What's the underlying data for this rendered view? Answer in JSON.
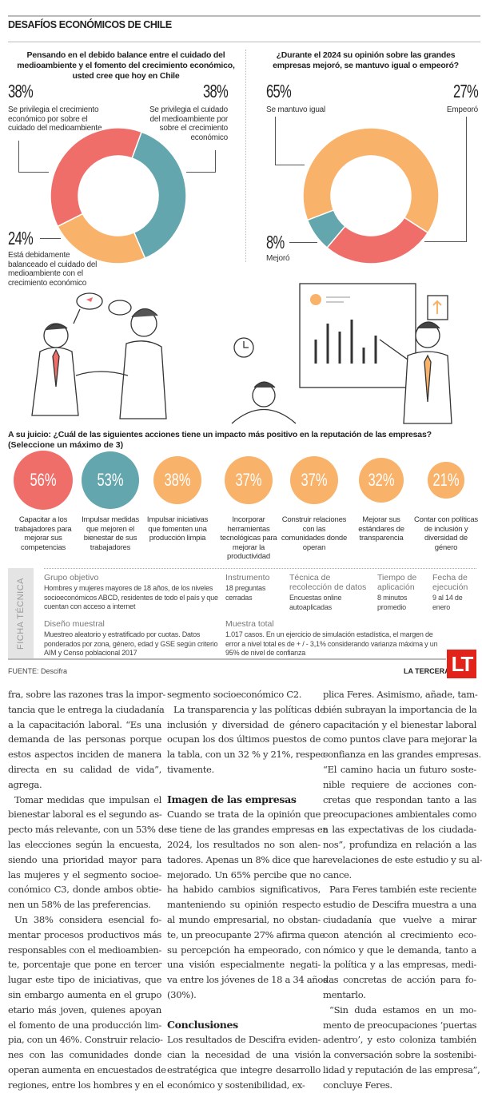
{
  "header": {
    "title": "DESAFÍOS ECONÓMICOS DE CHILE"
  },
  "colors": {
    "red": "#ef6e6a",
    "teal": "#64a6ad",
    "orange": "#f8b26a"
  },
  "chart_data": [
    {
      "type": "pie",
      "donut": true,
      "title": "Pensando en el debido balance entre el cuidado del medioambiente y el fomento del crecimiento económico, usted cree que hoy en Chile",
      "slices": [
        {
          "label": "Se privilegia el cuidado del medioambiente por sobre el crecimiento económico",
          "value": 38,
          "display": "38%",
          "color": "#64a6ad"
        },
        {
          "label": "Está debidamente balanceado el cuidado del medioambiente con el crecimiento económico",
          "value": 24,
          "display": "24%",
          "color": "#f8b26a"
        },
        {
          "label": "Se privilegia el crecimiento económico por sobre el cuidado del medioambiente",
          "value": 38,
          "display": "38%",
          "color": "#ef6e6a"
        }
      ]
    },
    {
      "type": "pie",
      "donut": true,
      "title": "¿Durante el 2024 su opinión sobre las grandes empresas mejoró, se mantuvo igual o empeoró?",
      "slices": [
        {
          "label": "Empeoró",
          "value": 27,
          "display": "27%",
          "color": "#ef6e6a"
        },
        {
          "label": "Mejoró",
          "value": 8,
          "display": "8%",
          "color": "#64a6ad"
        },
        {
          "label": "Se mantuvo igual",
          "value": 65,
          "display": "65%",
          "color": "#f8b26a"
        }
      ]
    },
    {
      "type": "bubble",
      "title": "A su juicio: ¿Cuál de las siguientes acciones tiene un impacto más positivo en la reputación de las empresas?",
      "subtitle": "(Seleccione un máximo de 3)",
      "items": [
        {
          "label": "Capacitar a los trabajadores para mejorar sus competencias",
          "value": 56,
          "display": "56%",
          "color": "#ef6e6a"
        },
        {
          "label": "Impulsar medidas que mejoren el bienestar de sus trabajadores",
          "value": 53,
          "display": "53%",
          "color": "#64a6ad"
        },
        {
          "label": "Impulsar iniciativas que fomenten una producción limpia",
          "value": 38,
          "display": "38%",
          "color": "#f8b26a"
        },
        {
          "label": "Incorporar herramientas tecnológicas para mejorar la productividad",
          "value": 37,
          "display": "37%",
          "color": "#f8b26a"
        },
        {
          "label": "Construir relaciones con las comunidades donde operan",
          "value": 37,
          "display": "37%",
          "color": "#f8b26a"
        },
        {
          "label": "Mejorar sus estándares de transparencia",
          "value": 32,
          "display": "32%",
          "color": "#f8b26a"
        },
        {
          "label": "Contar con políticas de inclusión y diversidad de género",
          "value": 21,
          "display": "21%",
          "color": "#f8b26a"
        }
      ]
    }
  ],
  "ficha": {
    "title": "FICHA TÉCNICA",
    "grupo": {
      "h": "Grupo objetivo",
      "t": "Hombres y mujeres mayores de 18 años, de los niveles socioeconómicos ABCD, residentes de todo el país y que cuentan con acceso a internet"
    },
    "instrumento": {
      "h": "Instrumento",
      "t": "18 preguntas cerradas"
    },
    "tecnica": {
      "h": "Técnica de recolección de datos",
      "t": "Encuestas online autoaplicadas"
    },
    "tiempo": {
      "h": "Tiempo de aplicación",
      "t": "8 minutos promedio"
    },
    "fecha": {
      "h": "Fecha de ejecución",
      "t": "9 al 14 de enero"
    },
    "diseno": {
      "h": "Diseño muestral",
      "t": "Muestreo aleatorio y estratificado por cuotas. Datos ponderados por zona, género, edad y GSE según criterio AIM y Censo poblacional 2017"
    },
    "muestra": {
      "h": "Muestra total",
      "t": "1.017 casos. En un ejercicio de simulación estadística, el margen de error a nivel total es de + / - 3,1% considerando varianza máxima y un 95% de nivel de confianza"
    }
  },
  "footer": {
    "source": "FUENTE: Descifra",
    "brand": "LA TERCERA",
    "logo": "LT"
  },
  "article": {
    "col1": [
      "fra, sobre las razones tras la impor-",
      "tancia que le entrega la ciudadanía",
      "a la capacitación laboral. “Es una",
      "demanda de las personas porque",
      "estos aspectos inciden de manera",
      "directa en su calidad de vida”,",
      "agrega.",
      "Tomar medidas que impulsan el",
      "bienestar laboral es el segundo as-",
      "pecto más relevante, con un 53% de",
      "las elecciones según la encuesta,",
      "siendo una prioridad mayor para",
      "las mujeres y el segmento socioe-",
      "conómico C3, donde ambos obtie-",
      "nen un 58% de las preferencias.",
      "Un 38% considera esencial fo-",
      "mentar procesos productivos más",
      "responsables con el medioambien-",
      "te, porcentaje que pone en tercer",
      "lugar este tipo de iniciativas, que",
      "sin embargo aumenta en el grupo",
      "etario más joven, quienes apoyan",
      "el fomento de una producción lim-",
      "pia, con un 46%. Construir relacio-",
      "nes con las comunidades donde",
      "operan aumenta en encuestados de",
      "regiones, entre los hombres y en el"
    ],
    "col2": [
      "segmento socioeconómico C2.",
      "La transparencia y las políticas de",
      "inclusión y diversidad de género",
      "ocupan los dos últimos puestos de",
      "la tabla, con un 32 % y 21%, respec-",
      "tivamente.",
      "",
      "Imagen de las empresas",
      "Cuando se trata de la opinión que",
      "se tiene de las grandes empresas en",
      "2024, los resultados no son alen-",
      "tadores. Apenas un 8% dice que ha",
      "mejorado. Un 65% percibe que no",
      "ha habido cambios significativos,",
      "manteniendo su opinión respecto",
      "al mundo empresarial, no obstan-",
      "te, un preocupante 27% afirma que",
      "su percepción ha empeorado, con",
      "una visión especialmente negati-",
      "va entre los jóvenes de 18 a 34 años",
      "(30%).",
      "",
      "Conclusiones",
      "Los resultados de Descifra eviden-",
      "cian la necesidad de una visión",
      "estratégica que integre desarrollo",
      "económico y sostenibilidad, ex-"
    ],
    "col3": [
      "plica Feres. Asimismo, añade, tam-",
      "bién subrayan la importancia de la",
      "capacitación y el bienestar laboral",
      "como puntos clave para mejorar la",
      "confianza en las grandes empresas.",
      "“El camino hacia un futuro soste-",
      "nible requiere de acciones con-",
      "cretas que respondan tanto a las",
      "preocupaciones ambientales como",
      "a las expectativas de los ciudada-",
      "nos”, profundiza en relación a las",
      "revelaciones de este estudio y su al-",
      "cance.",
      "Para Feres también este reciente",
      "estudio de Descifra muestra a una",
      "ciudadanía que vuelve a mirar",
      "con atención al crecimiento eco-",
      "nómico y que le demanda, tanto a",
      "la política y a las empresas, medi-",
      "das concretas de acción para fo-",
      "mentarlo.",
      "“Sin duda estamos en un mo-",
      "mento de preocupaciones ‘puertas",
      "adentro’, y esto coloniza también",
      "la conversación sobre la sostenibi-",
      "lidad y reputación de las empresa”,",
      "concluye Feres."
    ]
  }
}
